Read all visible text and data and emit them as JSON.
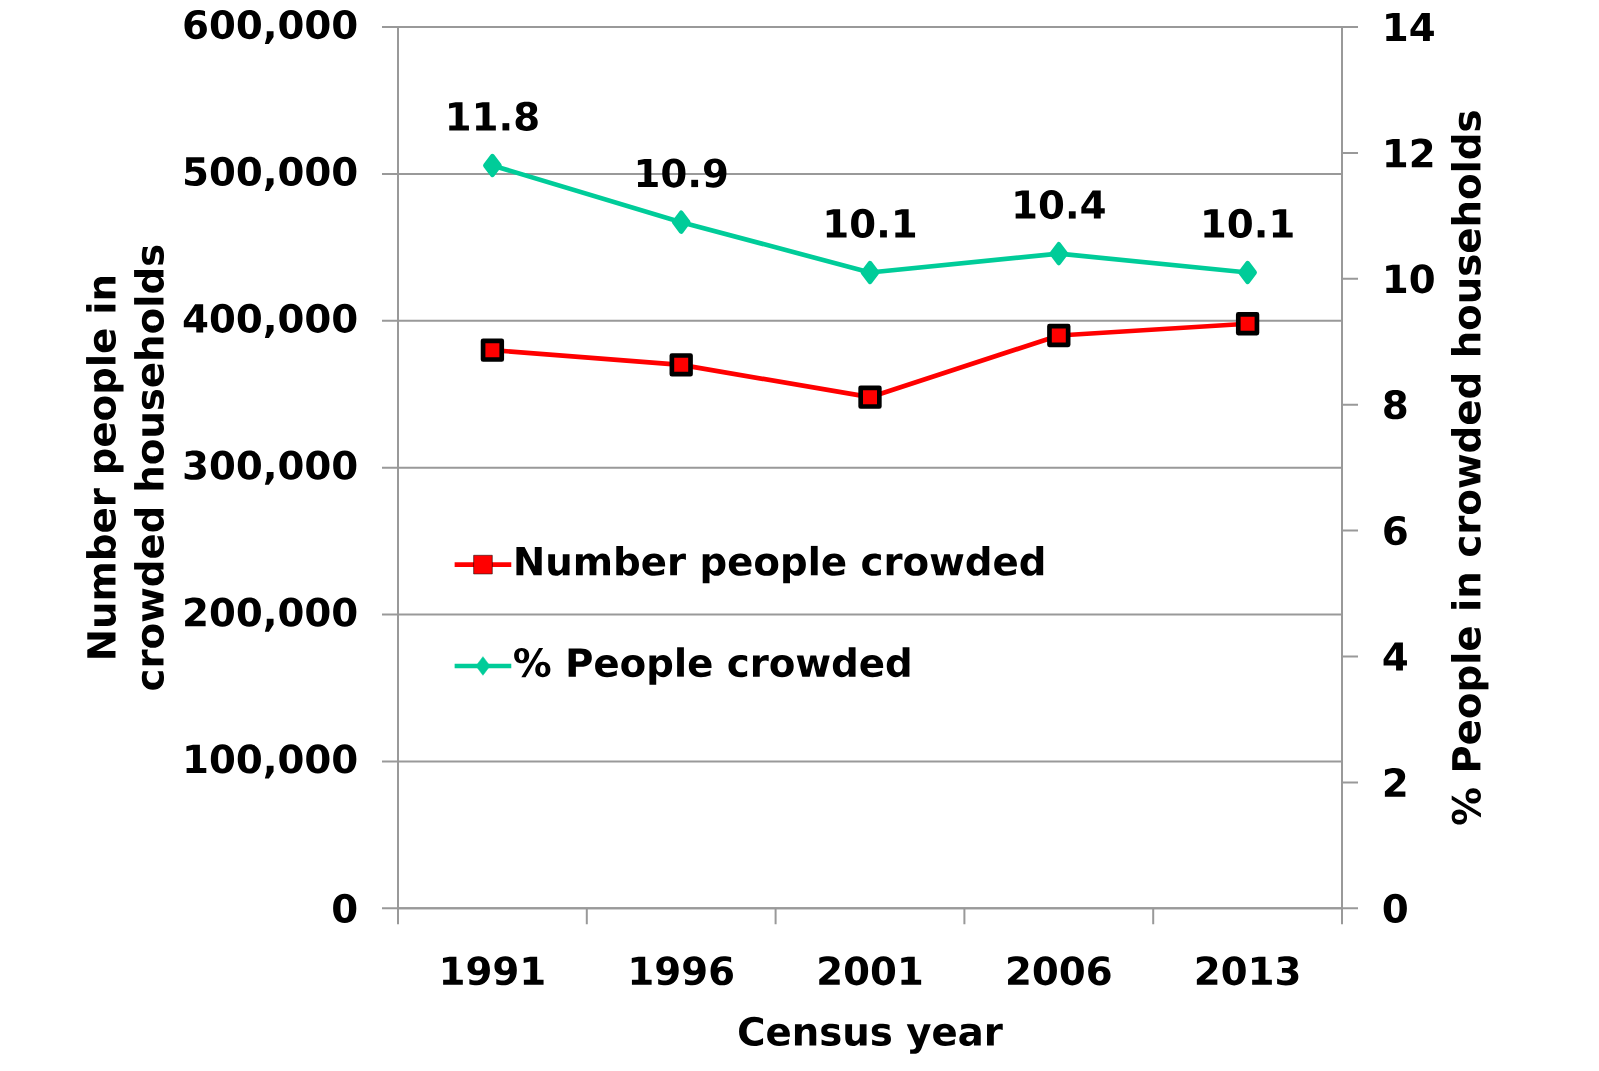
{
  "chart_data": {
    "type": "line",
    "xlabel": "Census year",
    "ylabel": "Number people in crowded households",
    "y2label": "% People in crowded households",
    "categories": [
      "1991",
      "1996",
      "2001",
      "2006",
      "2013"
    ],
    "series": [
      {
        "name": "Number people crowded",
        "color": "#ff0000",
        "marker": "square",
        "values": [
          380000,
          370000,
          348000,
          390000,
          398000
        ]
      },
      {
        "name": "% People crowded",
        "color": "#00cc99",
        "marker": "diamond",
        "axis": "y2",
        "values": [
          11.8,
          10.9,
          10.1,
          10.4,
          10.1
        ],
        "value_labels": [
          "11.8",
          "10.9",
          "10.1",
          "10.4",
          "10.1"
        ]
      }
    ],
    "ylim": [
      0,
      600000
    ],
    "yticks": [
      0,
      {
        "value": 100000,
        "label": "100,000"
      },
      {
        "value": 200000,
        "label": "200,000"
      },
      {
        "value": 300000,
        "label": "300,000"
      },
      {
        "value": 400000,
        "label": "400,000"
      },
      {
        "value": 500000,
        "label": "500,000"
      },
      {
        "value": 600000,
        "label": "600,000"
      }
    ],
    "y2lim": [
      0,
      14
    ],
    "y2ticks": [
      0,
      2,
      4,
      6,
      8,
      10,
      12,
      14
    ],
    "grid": "y",
    "legend": "left"
  }
}
